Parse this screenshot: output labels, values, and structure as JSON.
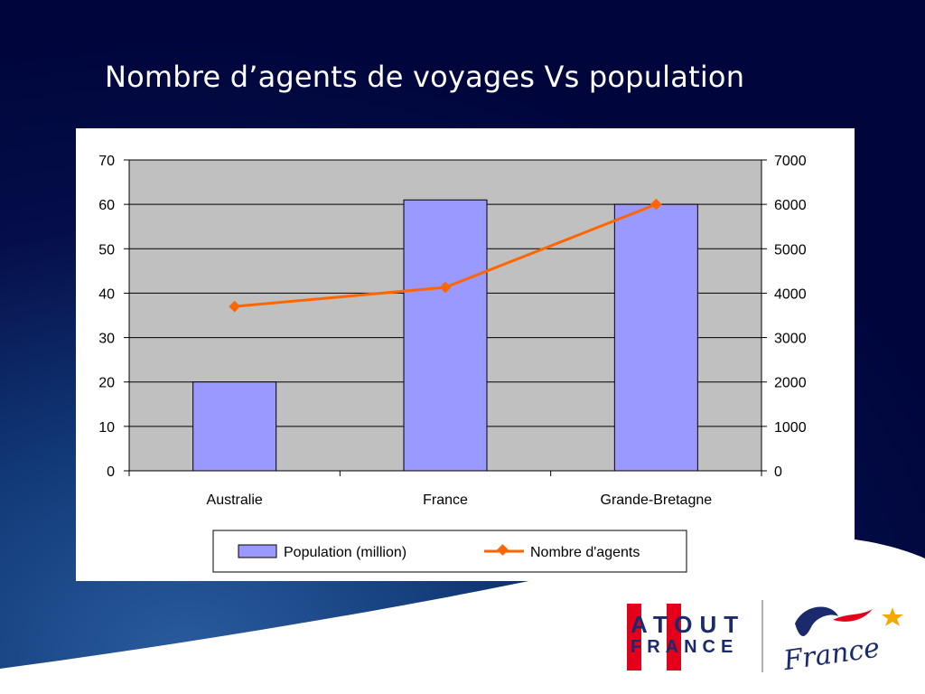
{
  "slide": {
    "title": "Nombre d’agents de voyages Vs population"
  },
  "chart_data": {
    "type": "bar",
    "categories": [
      "Australie",
      "France",
      "Grande-Bretagne"
    ],
    "series": [
      {
        "name": "Population (million)",
        "type": "bar",
        "axis": "left",
        "values": [
          20,
          61,
          60
        ],
        "color": "#9999ff"
      },
      {
        "name": "Nombre d'agents",
        "type": "line",
        "axis": "right",
        "values": [
          3700,
          4130,
          6000
        ],
        "color": "#ff6600"
      }
    ],
    "y_left": {
      "min": 0,
      "max": 70,
      "step": 10,
      "ticks": [
        "0",
        "10",
        "20",
        "30",
        "40",
        "50",
        "60",
        "70"
      ]
    },
    "y_right": {
      "min": 0,
      "max": 7000,
      "step": 1000,
      "ticks": [
        "0",
        "1000",
        "2000",
        "3000",
        "4000",
        "5000",
        "6000",
        "7000"
      ]
    },
    "grid": true,
    "plot_background": "#c0c0c0",
    "legend_position": "bottom"
  },
  "logos": {
    "atout_line1": "ATOUT",
    "atout_line2": "FRANCE",
    "france_word": "France",
    "colors": {
      "red": "#e2001a",
      "navy": "#1a2a6c"
    }
  },
  "theme": {
    "background_navy": "#00063c",
    "background_blue": "#1e4d8c"
  }
}
